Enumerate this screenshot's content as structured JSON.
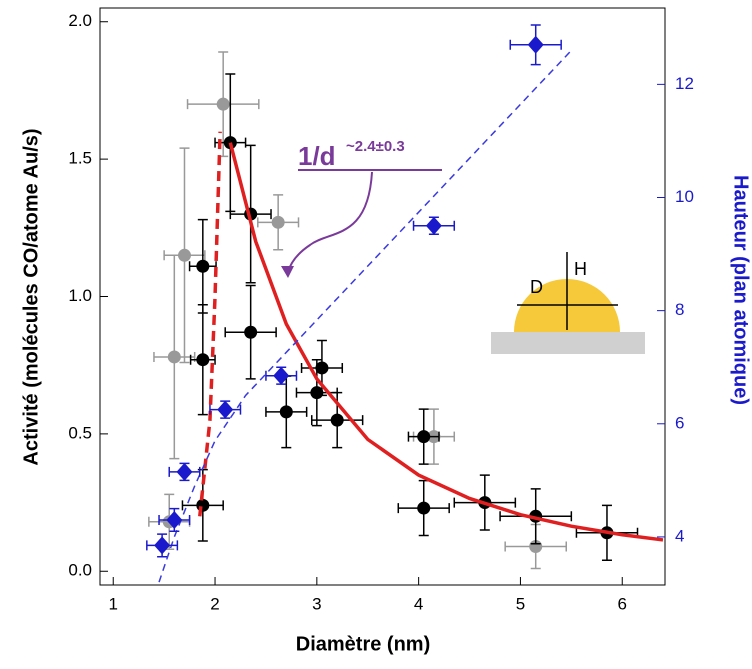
{
  "chart_data": {
    "type": "scatter",
    "x_label": "Diamètre (nm)",
    "y_label": "Activité (molécules CO/atome Au/s)",
    "y2_label": "Hauteur (plan atomique)",
    "annotation": "1/d",
    "annotation_exponent": "~2.4±0.3",
    "inset_labels": [
      "D",
      "H"
    ],
    "xlim": [
      0.87,
      6.42
    ],
    "ylim": [
      -0.05,
      2.05
    ],
    "y2lim": [
      3.15,
      13.35
    ],
    "xticks": [
      1,
      2,
      3,
      4,
      5,
      6
    ],
    "yticks": [
      {
        "value": 0,
        "label": "0.0"
      },
      {
        "value": 0.5,
        "label": "0.5"
      },
      {
        "value": 1,
        "label": "1.0"
      },
      {
        "value": 1.5,
        "label": "1.5"
      },
      {
        "value": 2,
        "label": "2.0"
      }
    ],
    "y2ticks": [
      4,
      6,
      8,
      10,
      12
    ],
    "y2_color": "#1a1acc",
    "series": [
      {
        "color": "#999999",
        "marker": "circle",
        "x": [
          1.55,
          1.6,
          1.7,
          2.08,
          2.62,
          4.15,
          5.15
        ],
        "values": [
          0.18,
          0.78,
          1.15,
          1.7,
          1.27,
          0.49,
          0.09
        ],
        "xerr": [
          0.2,
          0.2,
          0.2,
          0.35,
          0.2,
          0.2,
          0.3
        ],
        "yerr": [
          0.1,
          0.37,
          0.39,
          0.19,
          0.1,
          0.1,
          0.08
        ]
      },
      {
        "color": "#000000",
        "marker": "circle",
        "x": [
          1.88,
          1.88,
          1.88,
          2.15,
          2.35,
          2.35,
          2.7,
          3.0,
          3.05,
          3.2,
          4.05,
          4.05,
          4.65,
          5.15,
          5.85
        ],
        "values": [
          1.11,
          0.77,
          0.24,
          1.56,
          1.3,
          0.87,
          0.58,
          0.65,
          0.74,
          0.55,
          0.23,
          0.49,
          0.25,
          0.2,
          0.14
        ],
        "xerr": [
          0.13,
          0.12,
          0.2,
          0.15,
          0.2,
          0.25,
          0.2,
          0.2,
          0.2,
          0.25,
          0.25,
          0.15,
          0.3,
          0.35,
          0.3
        ],
        "yerr": [
          0.17,
          0.2,
          0.13,
          0.25,
          0.25,
          0.17,
          0.13,
          0.12,
          0.1,
          0.1,
          0.1,
          0.1,
          0.1,
          0.1,
          0.1
        ]
      },
      {
        "color": "#e02020",
        "line": "dashed",
        "x": [
          1.85,
          1.95,
          2.0,
          2.05
        ],
        "values": [
          0.2,
          0.55,
          1.0,
          1.6
        ]
      },
      {
        "color": "#e02020",
        "line": "solid",
        "x": [
          2.15,
          2.4,
          2.7,
          3.0,
          3.5,
          4.0,
          4.5,
          5.0,
          5.5,
          6.0,
          6.4
        ],
        "values": [
          1.56,
          1.2,
          0.9,
          0.7,
          0.48,
          0.35,
          0.265,
          0.206,
          0.164,
          0.133,
          0.114
        ]
      },
      {
        "color": "#3a3ae0",
        "line": "dashed",
        "axis": "y2",
        "x": [
          1.45,
          1.6,
          1.8,
          2.0,
          2.3,
          5.5
        ],
        "values": [
          3.2,
          4.0,
          4.9,
          5.7,
          6.5,
          12.6
        ]
      },
      {
        "color": "#1a1acc",
        "marker": "diamond",
        "axis": "y2",
        "x": [
          1.48,
          1.6,
          1.7,
          2.1,
          2.65,
          4.15,
          5.15
        ],
        "values": [
          3.85,
          4.3,
          5.15,
          6.25,
          6.85,
          9.5,
          12.7
        ],
        "xerr": [
          0.15,
          0.15,
          0.15,
          0.15,
          0.15,
          0.2,
          0.25
        ],
        "yerr": [
          0.2,
          0.2,
          0.15,
          0.15,
          0.15,
          0.15,
          0.35
        ]
      }
    ]
  }
}
